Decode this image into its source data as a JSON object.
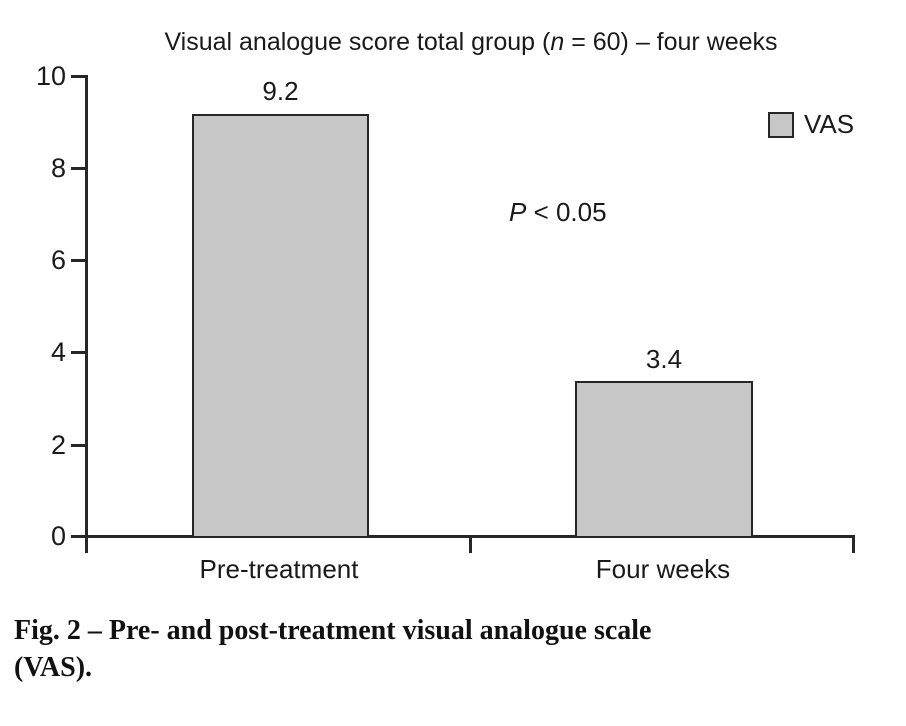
{
  "chart_data": {
    "type": "bar",
    "title": "Visual analogue score total group (n = 60) – four weeks",
    "title_parts": {
      "pre": "Visual analogue score total group (",
      "italic": "n",
      "post": " = 60) – four weeks"
    },
    "categories": [
      "Pre-treatment",
      "Four weeks"
    ],
    "series": [
      {
        "name": "VAS",
        "values": [
          9.2,
          3.4
        ]
      }
    ],
    "value_labels": [
      "9.2",
      "3.4"
    ],
    "xlabel": "",
    "ylabel": "",
    "ylim": [
      0,
      10
    ],
    "yticks": [
      "10",
      "8",
      "6",
      "4",
      "2",
      "0"
    ],
    "grid": false,
    "legend": {
      "label": "VAS",
      "position": "top-right",
      "swatch_color": "#c7c7c7"
    },
    "annotation": {
      "full": "P < 0.05",
      "italic": "P",
      "rest": " < 0.05"
    },
    "bar_color": "#c7c7c7",
    "bar_border_color": "#262626"
  },
  "caption": {
    "full": "Fig. 2 – Pre- and post-treatment visual analogue scale (VAS).",
    "lines": [
      "Fig. 2 – Pre- and post-treatment visual analogue scale",
      "(VAS)."
    ]
  },
  "colors": {
    "text": "#1a1a1a",
    "axis": "#262626",
    "background": "#ffffff"
  }
}
